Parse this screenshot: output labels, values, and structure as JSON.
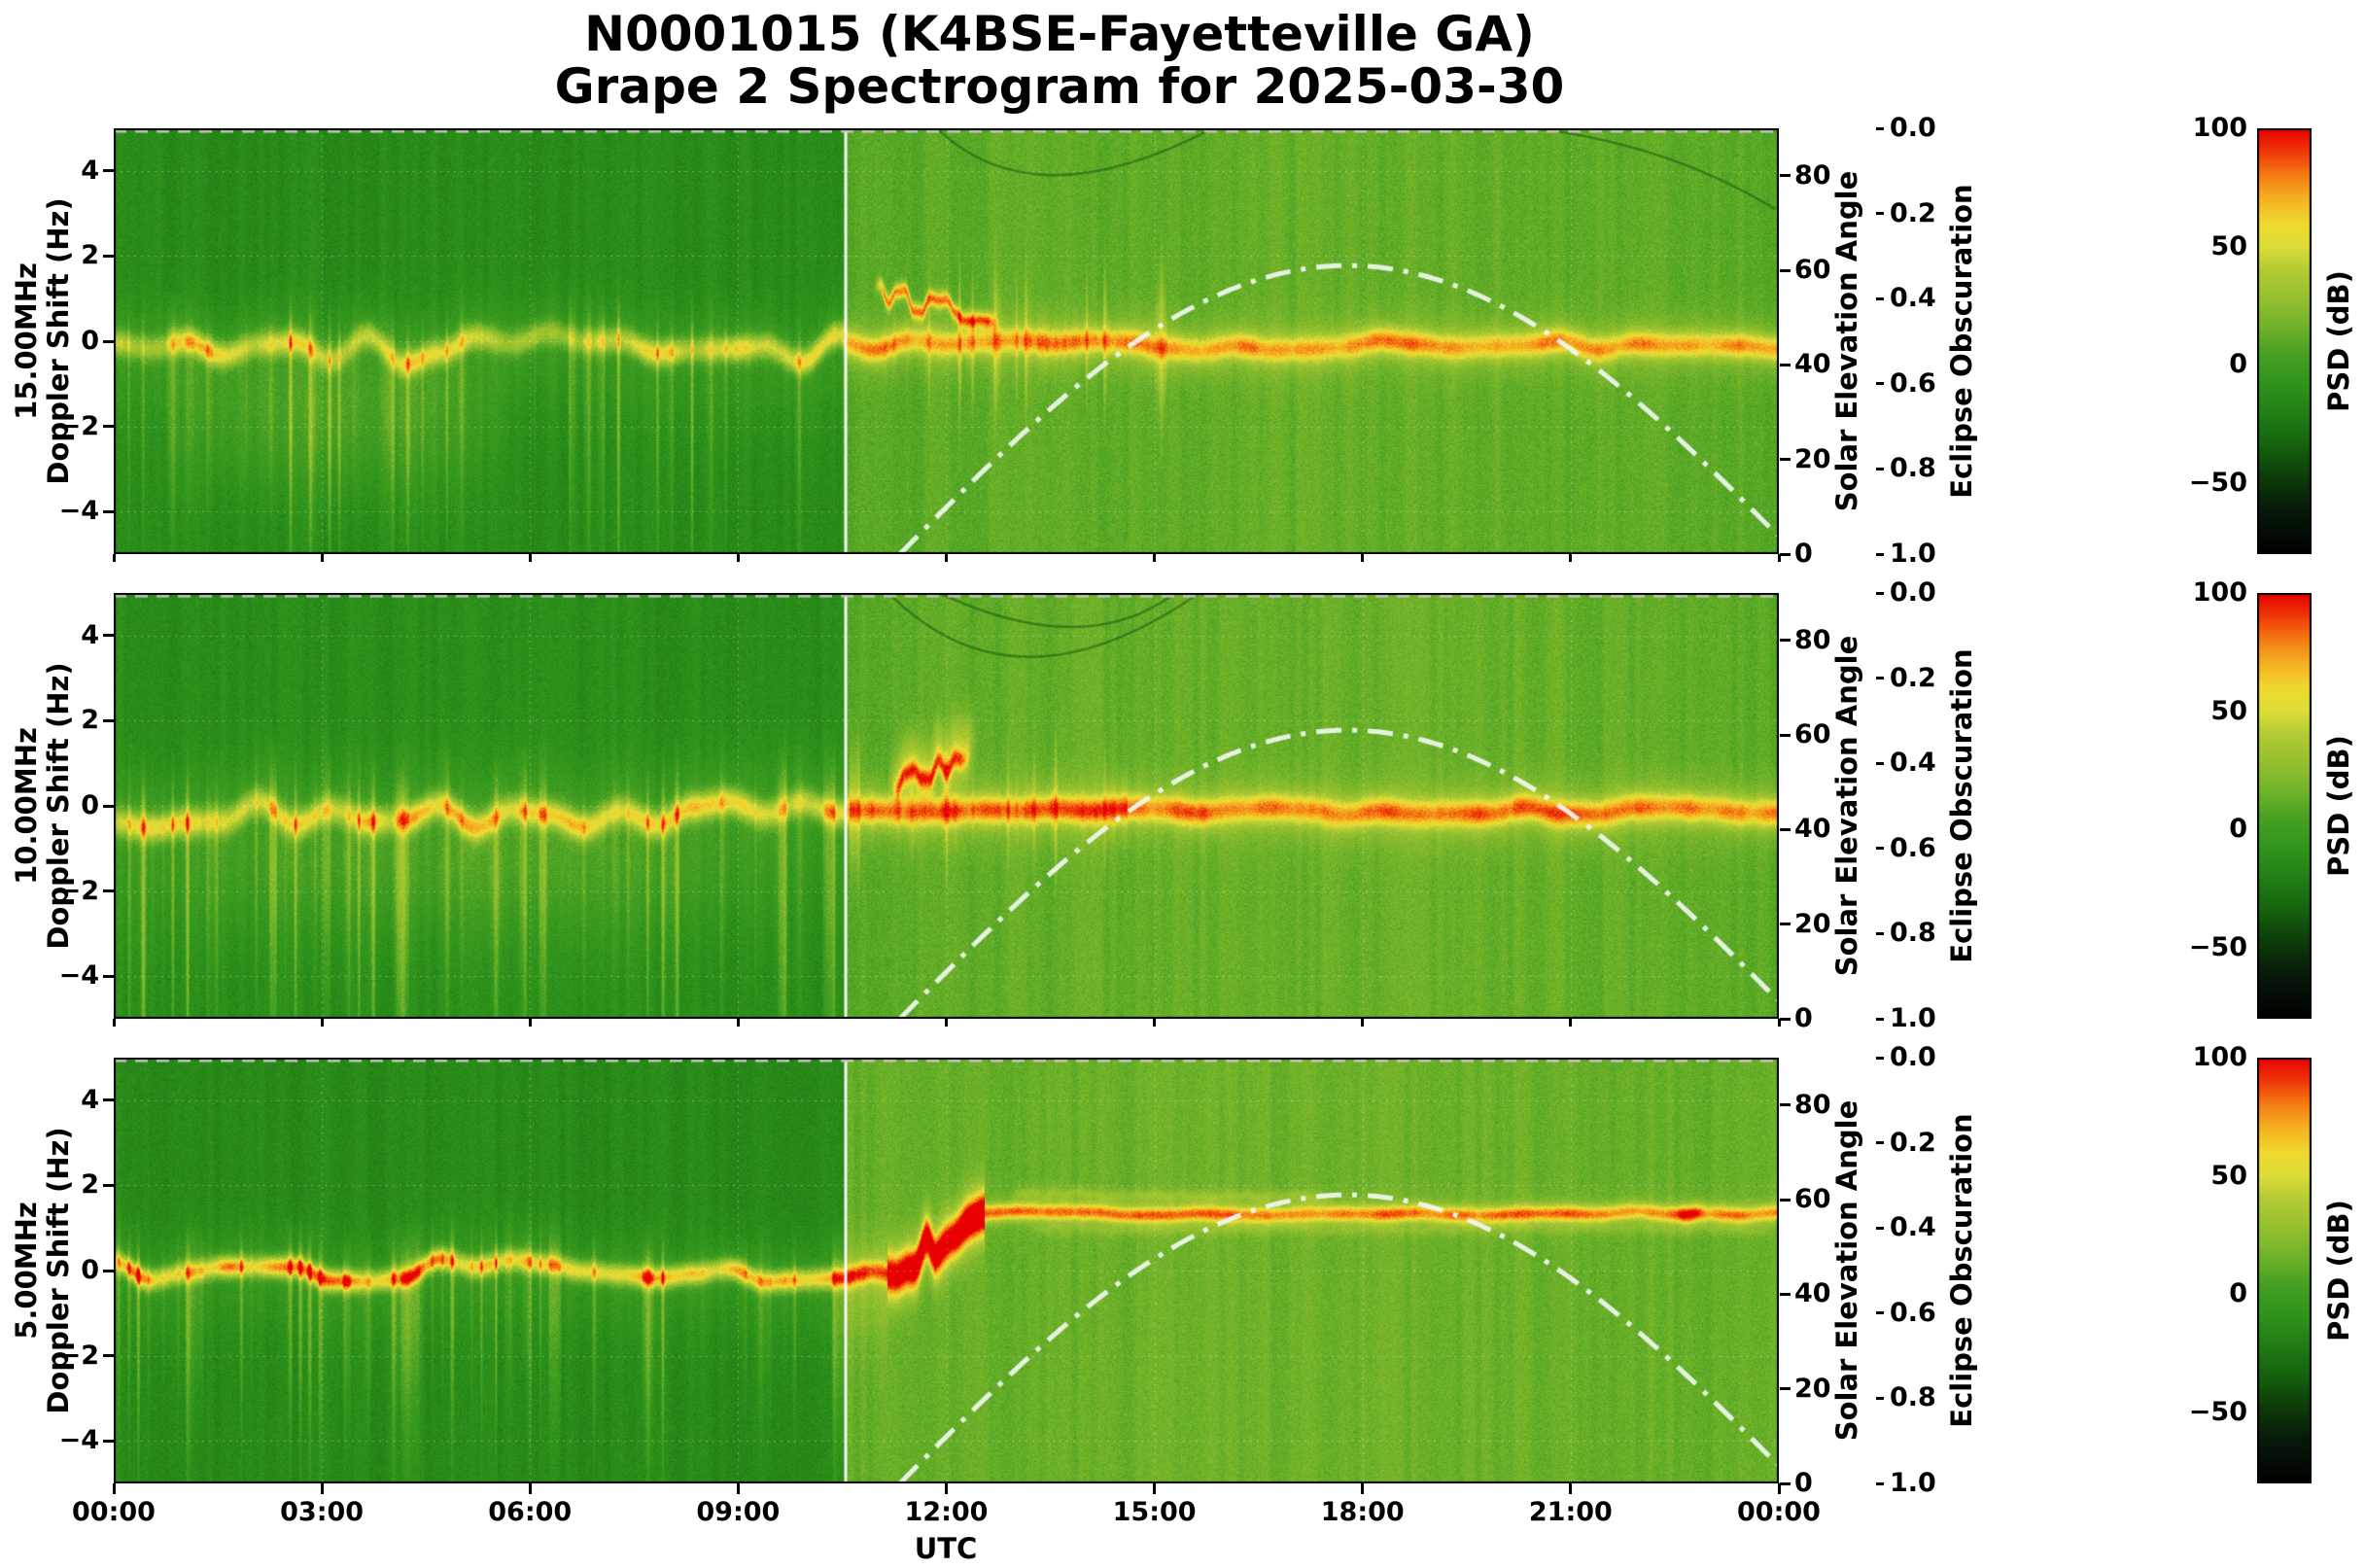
{
  "chart_data": {
    "type": "heatmap",
    "subtype": "doppler-spectrogram",
    "title_line1": "N0001015 (K4BSE-Fayetteville GA)",
    "title_line2": "Grape 2 Spectrogram for 2025-03-30",
    "station": "N0001015",
    "callsign_location": "K4BSE-Fayetteville GA",
    "date": "2025-03-30",
    "xlabel": "UTC",
    "x_ticks": [
      "00:00",
      "03:00",
      "06:00",
      "09:00",
      "12:00",
      "15:00",
      "18:00",
      "21:00",
      "00:00"
    ],
    "x_range_hours": [
      0,
      24
    ],
    "y_axis": {
      "label": "Doppler Shift (Hz)",
      "range": [
        -5,
        5
      ],
      "ticks": [
        "4",
        "2",
        "0",
        "−2",
        "−4"
      ],
      "tick_values": [
        4,
        2,
        0,
        -2,
        -4
      ]
    },
    "solar_axis": {
      "label": "Solar Elevation Angle",
      "range": [
        0,
        90
      ],
      "ticks": [
        "0",
        "20",
        "40",
        "60",
        "80"
      ],
      "tick_values": [
        0,
        20,
        40,
        60,
        80
      ]
    },
    "eclipse_axis": {
      "label": "Eclipse Obscuration",
      "range": [
        0,
        1
      ],
      "inverted": true,
      "ticks": [
        "0.0",
        "0.2",
        "0.4",
        "0.6",
        "0.8",
        "1.0"
      ],
      "value": "constant 0.0 all day (gray dashed line along top of each panel)"
    },
    "colorbar": {
      "label": "PSD (dB)",
      "range": [
        -80,
        100
      ],
      "ticks": [
        "100",
        "50",
        "0",
        "−50"
      ],
      "tick_values": [
        100,
        50,
        0,
        -50
      ],
      "stops": [
        [
          -80,
          "#000000"
        ],
        [
          -62,
          "#07180a"
        ],
        [
          -48,
          "#0c3a08"
        ],
        [
          -34,
          "#15620e"
        ],
        [
          -20,
          "#227f15"
        ],
        [
          -8,
          "#2f941c"
        ],
        [
          4,
          "#459f22"
        ],
        [
          16,
          "#6fb22a"
        ],
        [
          28,
          "#94c02f"
        ],
        [
          40,
          "#b1ca33"
        ],
        [
          50,
          "#dcdc39"
        ],
        [
          60,
          "#f0d92f"
        ],
        [
          70,
          "#f4b322"
        ],
        [
          80,
          "#f47f14"
        ],
        [
          90,
          "#ef3a08"
        ],
        [
          100,
          "#e80000"
        ]
      ]
    },
    "solar_curve": {
      "style": "white dash-dot curve on every panel",
      "rise_utc": 11.33,
      "set_utc": 24.25,
      "peak_deg": 61,
      "points": [
        [
          11.33,
          0
        ],
        [
          12,
          9.9
        ],
        [
          13,
          24.1
        ],
        [
          14,
          36.9
        ],
        [
          15,
          47.5
        ],
        [
          16,
          55.3
        ],
        [
          17,
          60.2
        ],
        [
          17.79,
          61
        ],
        [
          19,
          58.4
        ],
        [
          20,
          52.4
        ],
        [
          21,
          43.4
        ],
        [
          22,
          31.7
        ],
        [
          23,
          18.3
        ],
        [
          24,
          3.9
        ]
      ]
    },
    "day_night_boundary_utc": 10.55,
    "data_gap_line": {
      "utc": 10.55,
      "color": "#ffffff"
    },
    "panels": [
      {
        "freq_label": "15.00MHz",
        "axis_label": "Doppler Shift (Hz)",
        "features": "Yellow Doppler band near 0 Hz all night with diffuse spread down to about -3 Hz from ~01:00-05:30; white data-gap line at ~10:33 UTC; burst/spike activity 11:00-15:00 after sunrise; red Doppler excursion trace near +0.5 to +1.3 Hz around 11:00-12:45; tight quiet band after 15:00; faint dark arcs near top after noon.",
        "render": {
          "seed": 101,
          "mode": "band",
          "night_bg": -13,
          "day_bg": 10,
          "elev_gain": 3,
          "streak_amp": 3.5,
          "pix_noise": 6.5,
          "center_base_night": -0.15,
          "center_base_day": -0.1,
          "wander_night": 0.4,
          "wander_day": 0.14,
          "core_amp_night": 52,
          "core_var_night": 20,
          "core_amp_day": 52,
          "core_var_day": 8,
          "core_sigma": 0.2,
          "ped_amp_night": 18,
          "ped_sig_above": 0.65,
          "ped_sig_below": 1.25,
          "burst_gain": 2.4,
          "ped_amp_day": 13,
          "ped_sig_day": 0.5,
          "spike_window": [
            10.6,
            15.3
          ],
          "spike_amp": 24,
          "spike_sig": 1.15,
          "haze": {
            "t0": 0.7,
            "t1": 5.7,
            "d": -1.9,
            "sigma": 1.3,
            "amp": 15
          },
          "lines": [
            {
              "t0": 10.95,
              "t1": 12.75,
              "d0": 1.25,
              "d1": 0.5,
              "sigma": 0.13,
              "amp": 70,
              "wobble": 0.3
            }
          ],
          "arcs": [
            [
              [
                11.9,
                4.95
              ],
              [
                13.6,
                3.9
              ],
              [
                15.9,
                5.05
              ]
            ],
            [
              [
                20.2,
                5.05
              ],
              [
                22.2,
                4.4
              ],
              [
                23.95,
                3.1
              ]
            ]
          ]
        }
      },
      {
        "freq_label": "10.00MHz",
        "axis_label": "Doppler Shift (Hz)",
        "features": "Thick yellow band around 0 Hz at night with frequent picket-fence spread to -4 Hz; red patch near +0.5 to +1.5 Hz at 11:10-12:25; spiky activity until ~14:30; clean narrow band afterwards; faint arcs near top 11:00-16:00.",
        "render": {
          "seed": 202,
          "mode": "band",
          "night_bg": -12,
          "day_bg": 11,
          "elev_gain": 3,
          "streak_amp": 3.5,
          "pix_noise": 6.5,
          "center_base_night": -0.2,
          "center_base_day": -0.1,
          "wander_night": 0.32,
          "wander_day": 0.12,
          "core_amp_night": 56,
          "core_var_night": 14,
          "core_amp_day": 56,
          "core_var_day": 8,
          "core_sigma": 0.22,
          "ped_amp_night": 20,
          "ped_sig_above": 0.85,
          "ped_sig_below": 1.55,
          "burst_gain": 2.6,
          "ped_amp_day": 14,
          "ped_sig_day": 0.55,
          "spike_window": [
            10.6,
            14.6
          ],
          "spike_amp": 22,
          "spike_sig": 1.0,
          "haze": {
            "t0": 0.4,
            "t1": 9.6,
            "d": -1.6,
            "sigma": 1.1,
            "amp": 9
          },
          "lines": [
            {
              "t0": 11.15,
              "t1": 12.45,
              "d0": 0.55,
              "d1": 1.45,
              "sigma": 0.5,
              "amp": 30,
              "wobble": 0.25
            },
            {
              "t0": 11.2,
              "t1": 12.35,
              "d0": 0.5,
              "d1": 1.15,
              "sigma": 0.16,
              "amp": 52,
              "wobble": 0.2
            }
          ],
          "arcs": [
            [
              [
                11.2,
                4.95
              ],
              [
                13.2,
                3.5
              ],
              [
                15.6,
                4.95
              ]
            ],
            [
              [
                11.9,
                5.0
              ],
              [
                13.8,
                4.2
              ],
              [
                15.3,
                5.0
              ]
            ]
          ]
        }
      },
      {
        "freq_label": "5.00MHz",
        "axis_label": "Doppler Shift (Hz)",
        "features": "Strong band at 0 Hz with orange-red core all night; intense red chaotic region 10:40-12:30 as the band shifts up to ~+1.35 Hz; narrow flat yellow-orange line at ~+1.35 Hz persists 12:30-24:00 with faint parallel lines near +1.8 and +1.0 Hz and a small disturbance near 22:40.",
        "render": {
          "seed": 303,
          "mode": "shift",
          "night_bg": -14,
          "day_bg": 13,
          "elev_gain": 2.5,
          "streak_amp": 3.2,
          "pix_noise": 6.5,
          "center_base_night": 0.0,
          "wander_night": 0.33,
          "wander_day": 0.06,
          "shift_t0": 11.15,
          "shift_t1": 12.55,
          "shift_d": 1.35,
          "shift_chaos": 0.38,
          "core_amp_night": 74,
          "core_var_night": 18,
          "core_sigma_night": 0.17,
          "core_amp_trans": 88,
          "core_var_trans": 16,
          "core_sigma_trans": 0.3,
          "core_amp_day": 58,
          "core_var_day": 8,
          "core_sigma_day": 0.13,
          "ped_amp_night": 18,
          "ped_sig_above": 0.6,
          "ped_sig_below": 1.0,
          "burst_gain": 2.0,
          "ped_amp_trans": 30,
          "ped_sig_trans": 0.55,
          "ped_amp_day": 8,
          "ped_sig_day": 0.3,
          "lines": [
            {
              "t0": 12.9,
              "t1": 17.6,
              "d0": 1.82,
              "d1": 1.72,
              "sigma": 0.1,
              "amp": 13,
              "wobble": 0.05
            },
            {
              "t0": 13.2,
              "t1": 23.95,
              "d0": 0.98,
              "d1": 1.0,
              "sigma": 0.09,
              "amp": 8,
              "wobble": 0.05
            },
            {
              "t0": 22.45,
              "t1": 22.95,
              "d0": 1.4,
              "d1": 1.3,
              "sigma": 0.16,
              "amp": 24,
              "wobble": 0.1
            }
          ],
          "arcs": []
        }
      }
    ]
  }
}
